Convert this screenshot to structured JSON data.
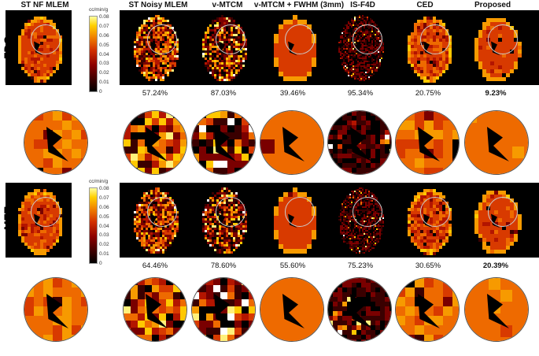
{
  "columns": [
    "ST NF MLEM",
    "ST Noisy MLEM",
    "v-MTCM",
    "v-MTCM + FWHM (3mm)",
    "IS-F4D",
    "CED",
    "Proposed"
  ],
  "rows": [
    {
      "label": "FDG",
      "percentages": [
        "57.24%",
        "87.03%",
        "39.46%",
        "95.34%",
        "20.75%",
        "9.23%"
      ],
      "best_index": 5
    },
    {
      "label": "MET",
      "percentages": [
        "64.46%",
        "78.60%",
        "55.60%",
        "75.23%",
        "30.65%",
        "20.39%"
      ],
      "best_index": 5
    }
  ],
  "colorbar": {
    "unit": "cc/min/g",
    "ticks": [
      "0.08",
      "0.07",
      "0.06",
      "0.05",
      "0.04",
      "0.03",
      "0.02",
      "0.01",
      "0"
    ]
  }
}
